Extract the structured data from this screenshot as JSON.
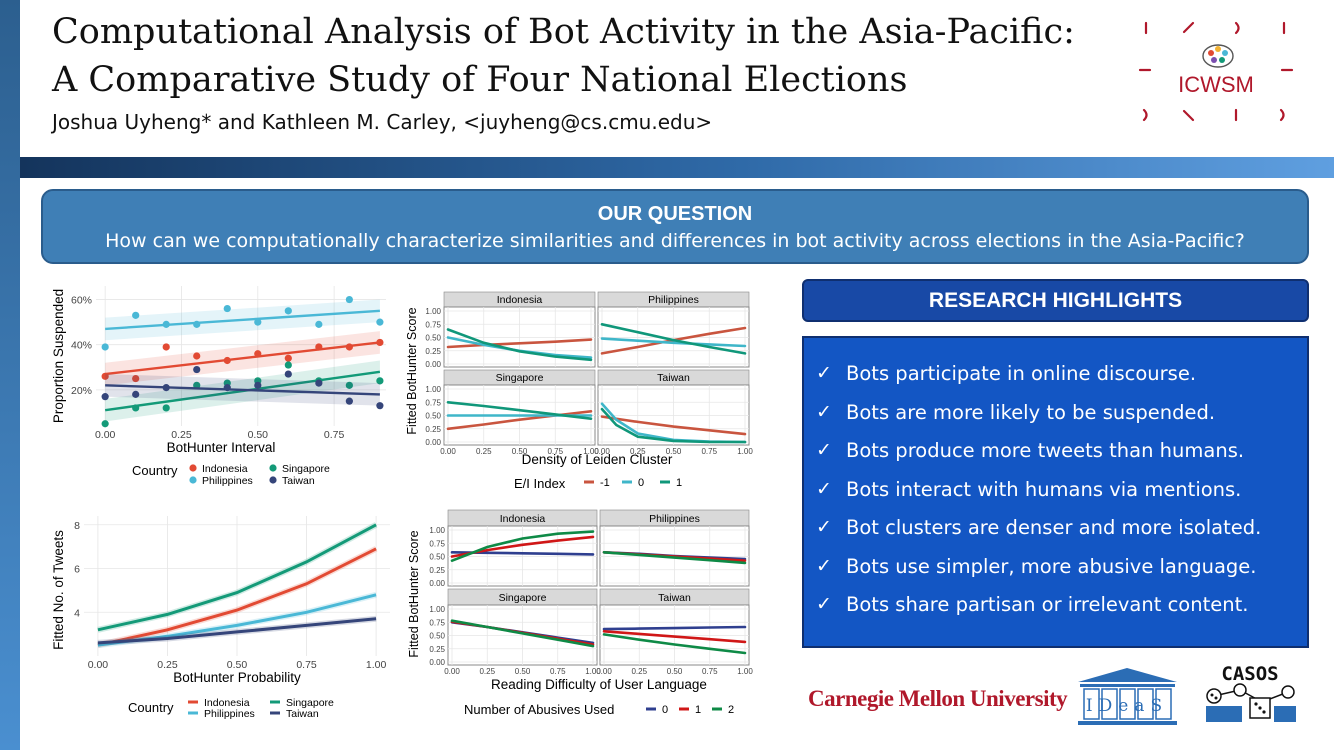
{
  "title": {
    "line1": "Computational Analysis of Bot Activity in the Asia-Pacific:",
    "line2": "A Comparative Study of Four National Elections"
  },
  "authors": "Joshua Uyheng* and Kathleen M. Carley, <juyheng@cs.cmu.edu>",
  "logos": {
    "icwsm": "ICWSM",
    "cmu": "Carnegie Mellon University",
    "ideas": "IDeaS",
    "casos": "CASOS"
  },
  "question": {
    "heading": "OUR QUESTION",
    "text": "How can we computationally characterize similarities and differences in bot activity across elections in the Asia-Pacific?"
  },
  "highlights": {
    "heading": "RESEARCH HIGHLIGHTS",
    "items": [
      "Bots participate in online discourse.",
      "Bots are more likely to be suspended.",
      "Bots produce more tweets than humans.",
      "Bots interact with humans via mentions.",
      "Bot clusters are denser and more isolated.",
      "Bots use simpler, more abusive language.",
      "Bots share partisan or irrelevant content."
    ]
  },
  "colors": {
    "Indonesia": "#e24a33",
    "Philippines": "#4ab8d6",
    "Singapore": "#139a78",
    "Taiwan": "#35457a",
    "ei_neg1": "#c9553f",
    "ei_0": "#3fb6c9",
    "ei_1": "#10977a",
    "ab_0": "#2f3f8f",
    "ab_1": "#d01717",
    "ab_2": "#0e8a46"
  },
  "chart_data": [
    {
      "type": "scatter",
      "xlabel": "BotHunter Interval",
      "ylabel": "Proportion Suspended",
      "xticks": [
        "0.00",
        "0.25",
        "0.50",
        "0.75"
      ],
      "yticks": [
        "20%",
        "40%",
        "60%"
      ],
      "xlim": [
        -0.03,
        0.92
      ],
      "ylim": [
        0.04,
        0.66
      ],
      "legend_title": "Country",
      "series": [
        {
          "name": "Indonesia",
          "points": [
            [
              0,
              0.26
            ],
            [
              0.1,
              0.25
            ],
            [
              0.2,
              0.39
            ],
            [
              0.3,
              0.35
            ],
            [
              0.4,
              0.33
            ],
            [
              0.5,
              0.36
            ],
            [
              0.6,
              0.34
            ],
            [
              0.7,
              0.39
            ],
            [
              0.8,
              0.39
            ],
            [
              0.9,
              0.41
            ]
          ],
          "fit": [
            [
              0,
              0.27
            ],
            [
              0.9,
              0.41
            ]
          ]
        },
        {
          "name": "Philippines",
          "points": [
            [
              0,
              0.39
            ],
            [
              0.1,
              0.53
            ],
            [
              0.2,
              0.49
            ],
            [
              0.3,
              0.49
            ],
            [
              0.4,
              0.56
            ],
            [
              0.5,
              0.5
            ],
            [
              0.6,
              0.55
            ],
            [
              0.7,
              0.49
            ],
            [
              0.8,
              0.6
            ],
            [
              0.9,
              0.5
            ]
          ],
          "fit": [
            [
              0,
              0.47
            ],
            [
              0.9,
              0.55
            ]
          ]
        },
        {
          "name": "Singapore",
          "points": [
            [
              0,
              0.05
            ],
            [
              0.1,
              0.12
            ],
            [
              0.2,
              0.12
            ],
            [
              0.3,
              0.22
            ],
            [
              0.4,
              0.23
            ],
            [
              0.5,
              0.24
            ],
            [
              0.6,
              0.31
            ],
            [
              0.7,
              0.24
            ],
            [
              0.8,
              0.22
            ],
            [
              0.9,
              0.24
            ]
          ],
          "fit": [
            [
              0,
              0.11
            ],
            [
              0.9,
              0.28
            ]
          ]
        },
        {
          "name": "Taiwan",
          "points": [
            [
              0,
              0.17
            ],
            [
              0.1,
              0.18
            ],
            [
              0.2,
              0.21
            ],
            [
              0.3,
              0.29
            ],
            [
              0.4,
              0.21
            ],
            [
              0.5,
              0.22
            ],
            [
              0.6,
              0.27
            ],
            [
              0.7,
              0.23
            ],
            [
              0.8,
              0.15
            ],
            [
              0.9,
              0.13
            ]
          ],
          "fit": [
            [
              0,
              0.22
            ],
            [
              0.9,
              0.18
            ]
          ]
        }
      ]
    },
    {
      "type": "line",
      "layout": "facets",
      "xlabel": "Density of Leiden Cluster",
      "ylabel": "Fitted BotHunter Score",
      "xticks": [
        "0.00",
        "0.25",
        "0.50",
        "0.75",
        "1.00"
      ],
      "yticks": [
        "0.00",
        "0.25",
        "0.50",
        "0.75",
        "1.00"
      ],
      "xlim": [
        0,
        1
      ],
      "ylim": [
        0,
        1
      ],
      "legend_title": "E/I Index",
      "legend_items": [
        "-1",
        "0",
        "1"
      ],
      "panels": [
        {
          "name": "Indonesia",
          "series": [
            {
              "name": "-1",
              "x": [
                0,
                0.25,
                0.5,
                0.75,
                1
              ],
              "y": [
                0.32,
                0.36,
                0.39,
                0.42,
                0.46
              ]
            },
            {
              "name": "0",
              "x": [
                0,
                0.25,
                0.5,
                0.75,
                1
              ],
              "y": [
                0.5,
                0.36,
                0.25,
                0.17,
                0.12
              ]
            },
            {
              "name": "1",
              "x": [
                0,
                0.25,
                0.5,
                0.75,
                1
              ],
              "y": [
                0.65,
                0.4,
                0.24,
                0.14,
                0.08
              ]
            }
          ]
        },
        {
          "name": "Philippines",
          "series": [
            {
              "name": "-1",
              "x": [
                0,
                0.25,
                0.5,
                0.75,
                1
              ],
              "y": [
                0.2,
                0.32,
                0.45,
                0.57,
                0.68
              ]
            },
            {
              "name": "0",
              "x": [
                0,
                0.25,
                0.5,
                0.75,
                1
              ],
              "y": [
                0.48,
                0.44,
                0.4,
                0.37,
                0.34
              ]
            },
            {
              "name": "1",
              "x": [
                0,
                0.25,
                0.5,
                0.75,
                1
              ],
              "y": [
                0.75,
                0.6,
                0.45,
                0.32,
                0.2
              ]
            }
          ]
        },
        {
          "name": "Singapore",
          "series": [
            {
              "name": "-1",
              "x": [
                0,
                0.25,
                0.5,
                0.75,
                1
              ],
              "y": [
                0.25,
                0.33,
                0.42,
                0.5,
                0.58
              ]
            },
            {
              "name": "0",
              "x": [
                0,
                0.25,
                0.5,
                0.75,
                1
              ],
              "y": [
                0.5,
                0.5,
                0.5,
                0.5,
                0.5
              ]
            },
            {
              "name": "1",
              "x": [
                0,
                0.25,
                0.5,
                0.75,
                1
              ],
              "y": [
                0.75,
                0.68,
                0.6,
                0.52,
                0.44
              ]
            }
          ]
        },
        {
          "name": "Taiwan",
          "series": [
            {
              "name": "-1",
              "x": [
                0,
                0.25,
                0.5,
                0.75,
                1
              ],
              "y": [
                0.48,
                0.38,
                0.29,
                0.22,
                0.15
              ]
            },
            {
              "name": "0",
              "x": [
                0,
                0.1,
                0.25,
                0.5,
                0.75,
                1
              ],
              "y": [
                0.72,
                0.42,
                0.16,
                0.04,
                0.01,
                0.0
              ]
            },
            {
              "name": "1",
              "x": [
                0,
                0.1,
                0.25,
                0.5,
                0.75,
                1
              ],
              "y": [
                0.62,
                0.32,
                0.1,
                0.02,
                0.0,
                0.0
              ]
            }
          ]
        }
      ]
    },
    {
      "type": "line",
      "xlabel": "BotHunter Probability",
      "ylabel": "Fitted No. of Tweets",
      "xticks": [
        "0.00",
        "0.25",
        "0.50",
        "0.75",
        "1.00"
      ],
      "yticks": [
        "4",
        "6",
        "8"
      ],
      "xlim": [
        -0.05,
        1.05
      ],
      "ylim": [
        2.0,
        8.4
      ],
      "legend_title": "Country",
      "series": [
        {
          "name": "Indonesia",
          "x": [
            0,
            0.25,
            0.5,
            0.75,
            1
          ],
          "y": [
            2.5,
            3.2,
            4.1,
            5.3,
            6.9
          ]
        },
        {
          "name": "Philippines",
          "x": [
            0,
            0.25,
            0.5,
            0.75,
            1
          ],
          "y": [
            2.5,
            2.9,
            3.4,
            4.0,
            4.8
          ]
        },
        {
          "name": "Singapore",
          "x": [
            0,
            0.25,
            0.5,
            0.75,
            1
          ],
          "y": [
            3.2,
            3.9,
            4.9,
            6.3,
            8.0
          ]
        },
        {
          "name": "Taiwan",
          "x": [
            0,
            0.25,
            0.5,
            0.75,
            1
          ],
          "y": [
            2.6,
            2.8,
            3.1,
            3.4,
            3.7
          ]
        }
      ]
    },
    {
      "type": "line",
      "layout": "facets",
      "xlabel": "Reading Difficulty of User Language",
      "ylabel": "Fitted BotHunter Score",
      "xticks": [
        "0.00",
        "0.25",
        "0.50",
        "0.75",
        "1.00"
      ],
      "yticks": [
        "0.00",
        "0.25",
        "0.50",
        "0.75",
        "1.00"
      ],
      "xlim": [
        0,
        1
      ],
      "ylim": [
        0,
        1
      ],
      "legend_title": "Number of Abusives Used",
      "legend_items": [
        "0",
        "1",
        "2"
      ],
      "panels": [
        {
          "name": "Indonesia",
          "series": [
            {
              "name": "0",
              "x": [
                0,
                0.25,
                0.5,
                0.75,
                1
              ],
              "y": [
                0.58,
                0.57,
                0.56,
                0.55,
                0.54
              ]
            },
            {
              "name": "1",
              "x": [
                0,
                0.25,
                0.5,
                0.75,
                1
              ],
              "y": [
                0.5,
                0.62,
                0.72,
                0.8,
                0.87
              ]
            },
            {
              "name": "2",
              "x": [
                0,
                0.25,
                0.5,
                0.75,
                1
              ],
              "y": [
                0.42,
                0.68,
                0.84,
                0.93,
                0.97
              ]
            }
          ]
        },
        {
          "name": "Philippines",
          "series": [
            {
              "name": "0",
              "x": [
                0,
                0.25,
                0.5,
                0.75,
                1
              ],
              "y": [
                0.58,
                0.55,
                0.51,
                0.48,
                0.45
              ]
            },
            {
              "name": "1",
              "x": [
                0,
                0.25,
                0.5,
                0.75,
                1
              ],
              "y": [
                0.58,
                0.54,
                0.5,
                0.46,
                0.42
              ]
            },
            {
              "name": "2",
              "x": [
                0,
                0.25,
                0.5,
                0.75,
                1
              ],
              "y": [
                0.58,
                0.53,
                0.48,
                0.43,
                0.38
              ]
            }
          ]
        },
        {
          "name": "Singapore",
          "series": [
            {
              "name": "0",
              "x": [
                0,
                0.25,
                0.5,
                0.75,
                1
              ],
              "y": [
                0.75,
                0.66,
                0.56,
                0.46,
                0.36
              ]
            },
            {
              "name": "1",
              "x": [
                0,
                0.25,
                0.5,
                0.75,
                1
              ],
              "y": [
                0.76,
                0.66,
                0.55,
                0.44,
                0.33
              ]
            },
            {
              "name": "2",
              "x": [
                0,
                0.25,
                0.5,
                0.75,
                1
              ],
              "y": [
                0.78,
                0.66,
                0.54,
                0.42,
                0.3
              ]
            }
          ]
        },
        {
          "name": "Taiwan",
          "series": [
            {
              "name": "0",
              "x": [
                0,
                0.25,
                0.5,
                0.75,
                1
              ],
              "y": [
                0.62,
                0.63,
                0.64,
                0.65,
                0.66
              ]
            },
            {
              "name": "1",
              "x": [
                0,
                0.25,
                0.5,
                0.75,
                1
              ],
              "y": [
                0.58,
                0.53,
                0.48,
                0.43,
                0.38
              ]
            },
            {
              "name": "2",
              "x": [
                0,
                0.25,
                0.5,
                0.75,
                1
              ],
              "y": [
                0.52,
                0.42,
                0.33,
                0.25,
                0.17
              ]
            }
          ]
        }
      ]
    }
  ]
}
